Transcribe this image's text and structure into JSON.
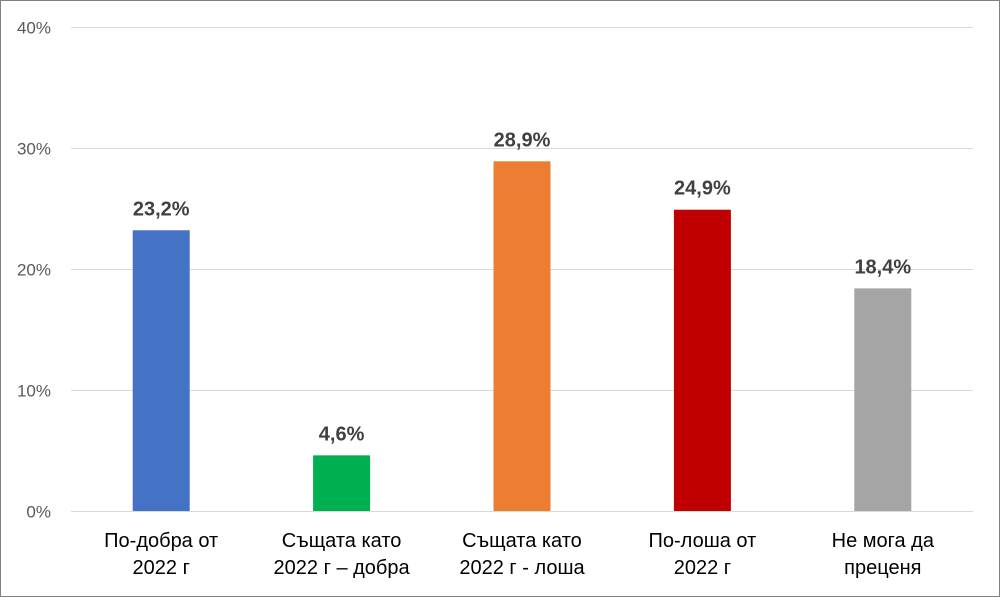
{
  "chart_data": {
    "type": "bar",
    "categories": [
      [
        "По-добра от",
        "2022 г"
      ],
      [
        "Същата като",
        "2022 г  – добра"
      ],
      [
        "Същата като",
        "2022 г - лоша"
      ],
      [
        "По-лоша от",
        "2022 г"
      ],
      [
        "Не мога да",
        "преценя"
      ]
    ],
    "values": [
      23.2,
      4.6,
      28.9,
      24.9,
      18.4
    ],
    "data_labels": [
      "23,2%",
      "4,6%",
      "28,9%",
      "24,9%",
      "18,4%"
    ],
    "colors": [
      "#4472C4",
      "#00B050",
      "#ED7D31",
      "#C00000",
      "#A5A5A5"
    ],
    "yticks": [
      0,
      10,
      20,
      30,
      40
    ],
    "ytick_labels": [
      "0%",
      "10%",
      "20%",
      "30%",
      "40%"
    ],
    "ylim": [
      0,
      40
    ],
    "grid": true,
    "gridline_color": "#D9D9D9",
    "legend": "none"
  }
}
